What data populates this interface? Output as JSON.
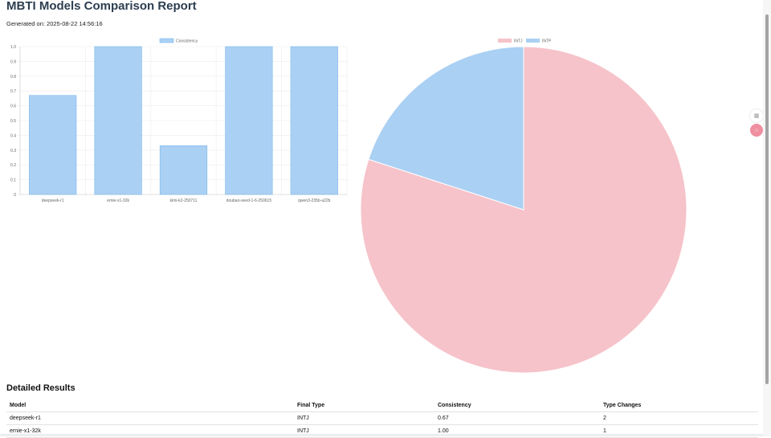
{
  "page": {
    "title": "MBTI Models Comparison Report",
    "generated": "Generated on: 2025-08-22 14:56:16"
  },
  "colors": {
    "blue_fill": "#aad0f3",
    "blue_stroke": "#7bb8ee",
    "pink_fill": "#f6c3ca",
    "title": "#2c3e50"
  },
  "chart_data": [
    {
      "type": "bar",
      "categories": [
        "deepseek-r1",
        "ernie-x1-32k",
        "kimi-k2-250711",
        "doubao-seed-1-6-250615",
        "qwen3-235b-a22b"
      ],
      "series": [
        {
          "name": "Consistency",
          "values": [
            0.67,
            1.0,
            0.33,
            1.0,
            1.0
          ]
        }
      ],
      "ylim": [
        0,
        1.0
      ],
      "yticks": [
        "0",
        "0.1",
        "0.2",
        "0.3",
        "0.4",
        "0.5",
        "0.6",
        "0.7",
        "0.8",
        "0.9",
        "1.0"
      ],
      "legend": "top-center",
      "grid": true
    },
    {
      "type": "pie",
      "labels": [
        "INTJ",
        "INTP"
      ],
      "values": [
        4,
        1
      ],
      "colors": [
        "#f6c3ca",
        "#aad0f3"
      ],
      "legend": "top-center"
    }
  ],
  "results": {
    "heading": "Detailed Results",
    "columns": [
      "Model",
      "Final Type",
      "Consistency",
      "Type Changes"
    ],
    "rows": [
      [
        "deepseek-r1",
        "INTJ",
        "0.67",
        "2"
      ],
      [
        "ernie-x1-32k",
        "INTJ",
        "1.00",
        "1"
      ]
    ]
  },
  "side_icons": [
    "grid-icon",
    "translate-icon"
  ]
}
